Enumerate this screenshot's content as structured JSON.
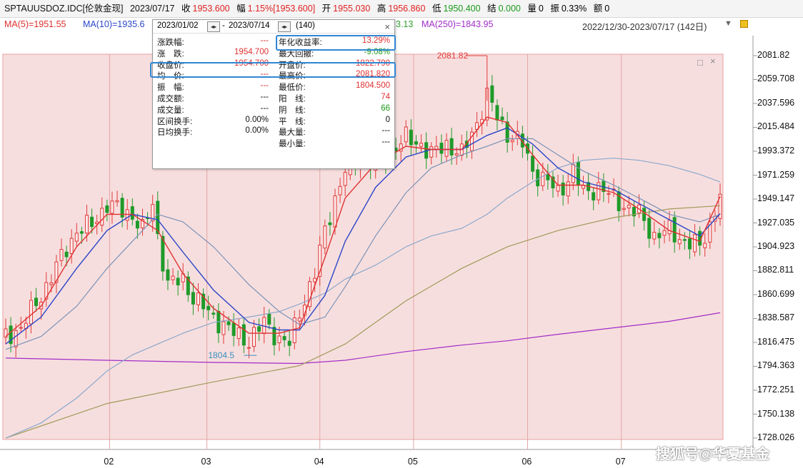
{
  "topbar": {
    "symbol": "SPTAUUSDOZ.IDC[伦敦金现]",
    "date": "2023/07/17",
    "close_label": "收",
    "close_value": "1953.600",
    "change_label": "幅",
    "change_value": "1.15%[1953.600]",
    "open_label": "开",
    "open_value": "1955.030",
    "high_label": "高",
    "high_value": "1956.860",
    "low_label": "低",
    "low_value": "1950.400",
    "settle_label": "结",
    "settle_value": "0.000",
    "volume_label": "量",
    "volume_value": "0",
    "amplitude_label": "振",
    "amplitude_value": "0.33%",
    "amount_label": "额",
    "amount_value": "0"
  },
  "ma": {
    "ma5": "MA(5)=1951.55",
    "ma10": "MA(10)=1935.6",
    "ma60_tail": "3.13",
    "ma250": "MA(250)=1843.95",
    "range": "2022/12/30-2023/07/17 (142日)",
    "colors": {
      "ma5": "#e03030",
      "ma10": "#2a45c8",
      "ma20": "#7a93b8",
      "ma60": "#8aa8cc",
      "ma120": "#a09a5a",
      "ma250": "#a22cc8"
    }
  },
  "panel": {
    "start_date": "2023/01/02",
    "end_date": "2023/07/14",
    "count": "(140)",
    "close_symbol": "×",
    "left": [
      {
        "label": "涨跌幅:",
        "value": "---"
      },
      {
        "label": "涨　跌:",
        "value": "1954.700"
      },
      {
        "label": "收盘价:",
        "value": "1954.700"
      },
      {
        "label": "均　价:",
        "value": "---"
      },
      {
        "label": "振　幅:",
        "value": "---"
      },
      {
        "label": "成交额:",
        "value": "---"
      },
      {
        "label": "成交量:",
        "value": "---"
      },
      {
        "label": "区间换手:",
        "value": "0.00%"
      },
      {
        "label": "日均换手:",
        "value": "0.00%"
      }
    ],
    "right": [
      {
        "label": "年化收益率:",
        "value": "13.29%"
      },
      {
        "label": "最大回撤:",
        "value": "-9.08%"
      },
      {
        "label": "开盘价:",
        "value": "1822.790"
      },
      {
        "label": "最高价:",
        "value": "2081.820"
      },
      {
        "label": "最低价:",
        "value": "1804.500"
      },
      {
        "label": "阳　线:",
        "value": "74"
      },
      {
        "label": "阴　线:",
        "value": "66"
      },
      {
        "label": "平　线:",
        "value": "0"
      },
      {
        "label": "最大量:",
        "value": "---"
      },
      {
        "label": "最小量:",
        "value": "---"
      }
    ]
  },
  "annotations": {
    "high": "2081.82",
    "low": "1804.5"
  },
  "watermark": "搜狐号@华夏基金",
  "chart_data": {
    "type": "candlestick",
    "y_ticks": [
      "2081.82",
      "2059.708",
      "2037.596",
      "2015.484",
      "1993.372",
      "1971.259",
      "1949.147",
      "1927.035",
      "1904.923",
      "1882.811",
      "1860.699",
      "1838.587",
      "1816.475",
      "1794.363",
      "1772.251",
      "1750.138",
      "1728.026"
    ],
    "x_ticks": [
      "02",
      "03",
      "04",
      "05",
      "06",
      "07"
    ],
    "ylim": [
      1728.026,
      2081.82
    ],
    "close_path": [
      [
        1,
        1822
      ],
      [
        4,
        1830
      ],
      [
        8,
        1860
      ],
      [
        12,
        1895
      ],
      [
        15,
        1920
      ],
      [
        18,
        1925
      ],
      [
        21,
        1945
      ],
      [
        24,
        1938
      ],
      [
        26,
        1935
      ],
      [
        28,
        1920
      ],
      [
        30,
        1945
      ],
      [
        31,
        1915
      ],
      [
        33,
        1870
      ],
      [
        36,
        1875
      ],
      [
        38,
        1858
      ],
      [
        42,
        1840
      ],
      [
        46,
        1825
      ],
      [
        49,
        1818
      ],
      [
        52,
        1835
      ],
      [
        55,
        1820
      ],
      [
        57,
        1815
      ],
      [
        59,
        1845
      ],
      [
        62,
        1880
      ],
      [
        64,
        1920
      ],
      [
        66,
        1950
      ],
      [
        68,
        1975
      ],
      [
        71,
        1990
      ],
      [
        74,
        1980
      ],
      [
        77,
        1995
      ],
      [
        80,
        2005
      ],
      [
        83,
        2000
      ],
      [
        85,
        1990
      ],
      [
        88,
        2000
      ],
      [
        91,
        1990
      ],
      [
        94,
        2020
      ],
      [
        96,
        2045
      ],
      [
        98,
        2025
      ],
      [
        100,
        2010
      ],
      [
        103,
        2000
      ],
      [
        105,
        1975
      ],
      [
        108,
        1965
      ],
      [
        110,
        1955
      ],
      [
        113,
        1975
      ],
      [
        115,
        1955
      ],
      [
        118,
        1960
      ],
      [
        121,
        1950
      ],
      [
        124,
        1940
      ],
      [
        126,
        1935
      ],
      [
        129,
        1915
      ],
      [
        132,
        1920
      ],
      [
        135,
        1910
      ],
      [
        138,
        1905
      ],
      [
        140,
        1925
      ],
      [
        142,
        1953.6
      ]
    ],
    "ma5": [
      [
        1,
        1822
      ],
      [
        8,
        1850
      ],
      [
        15,
        1905
      ],
      [
        21,
        1935
      ],
      [
        26,
        1935
      ],
      [
        31,
        1920
      ],
      [
        36,
        1880
      ],
      [
        42,
        1848
      ],
      [
        49,
        1825
      ],
      [
        55,
        1825
      ],
      [
        59,
        1830
      ],
      [
        64,
        1895
      ],
      [
        68,
        1950
      ],
      [
        74,
        1982
      ],
      [
        80,
        1998
      ],
      [
        85,
        1995
      ],
      [
        91,
        1995
      ],
      [
        96,
        2025
      ],
      [
        100,
        2020
      ],
      [
        105,
        1990
      ],
      [
        110,
        1962
      ],
      [
        115,
        1962
      ],
      [
        121,
        1955
      ],
      [
        126,
        1940
      ],
      [
        132,
        1920
      ],
      [
        138,
        1910
      ],
      [
        142,
        1951.55
      ]
    ],
    "ma10": [
      [
        1,
        1815
      ],
      [
        8,
        1840
      ],
      [
        15,
        1885
      ],
      [
        21,
        1920
      ],
      [
        26,
        1935
      ],
      [
        31,
        1930
      ],
      [
        36,
        1900
      ],
      [
        42,
        1865
      ],
      [
        49,
        1835
      ],
      [
        55,
        1828
      ],
      [
        59,
        1828
      ],
      [
        64,
        1860
      ],
      [
        68,
        1910
      ],
      [
        74,
        1960
      ],
      [
        80,
        1988
      ],
      [
        85,
        1995
      ],
      [
        91,
        1995
      ],
      [
        96,
        2008
      ],
      [
        100,
        2015
      ],
      [
        105,
        2000
      ],
      [
        110,
        1978
      ],
      [
        115,
        1965
      ],
      [
        121,
        1958
      ],
      [
        126,
        1945
      ],
      [
        132,
        1930
      ],
      [
        138,
        1915
      ],
      [
        142,
        1935.6
      ]
    ],
    "ma20": [
      [
        1,
        1810
      ],
      [
        8,
        1822
      ],
      [
        15,
        1850
      ],
      [
        21,
        1885
      ],
      [
        26,
        1910
      ],
      [
        31,
        1935
      ],
      [
        36,
        1928
      ],
      [
        42,
        1905
      ],
      [
        49,
        1870
      ],
      [
        55,
        1845
      ],
      [
        59,
        1833
      ],
      [
        64,
        1840
      ],
      [
        68,
        1868
      ],
      [
        74,
        1915
      ],
      [
        80,
        1955
      ],
      [
        85,
        1978
      ],
      [
        91,
        1990
      ],
      [
        96,
        1998
      ],
      [
        100,
        2005
      ],
      [
        105,
        2005
      ],
      [
        110,
        1990
      ],
      [
        115,
        1975
      ],
      [
        121,
        1962
      ],
      [
        126,
        1950
      ],
      [
        132,
        1935
      ],
      [
        138,
        1928
      ],
      [
        142,
        1935
      ]
    ],
    "ma60": [
      [
        1,
        1728
      ],
      [
        8,
        1742
      ],
      [
        15,
        1765
      ],
      [
        21,
        1790
      ],
      [
        26,
        1805
      ],
      [
        31,
        1815
      ],
      [
        36,
        1825
      ],
      [
        42,
        1835
      ],
      [
        49,
        1840
      ],
      [
        55,
        1845
      ],
      [
        59,
        1852
      ],
      [
        64,
        1862
      ],
      [
        68,
        1875
      ],
      [
        74,
        1888
      ],
      [
        80,
        1905
      ],
      [
        85,
        1915
      ],
      [
        91,
        1922
      ],
      [
        96,
        1935
      ],
      [
        100,
        1950
      ],
      [
        105,
        1965
      ],
      [
        110,
        1978
      ],
      [
        115,
        1985
      ],
      [
        121,
        1987
      ],
      [
        126,
        1985
      ],
      [
        132,
        1980
      ],
      [
        138,
        1972
      ],
      [
        142,
        1965
      ]
    ],
    "ma120": [
      [
        1,
        1728
      ],
      [
        21,
        1760
      ],
      [
        42,
        1780
      ],
      [
        59,
        1795
      ],
      [
        68,
        1815
      ],
      [
        80,
        1855
      ],
      [
        91,
        1885
      ],
      [
        100,
        1905
      ],
      [
        110,
        1920
      ],
      [
        121,
        1932
      ],
      [
        132,
        1940
      ],
      [
        142,
        1943
      ]
    ],
    "ma250": [
      [
        1,
        1802
      ],
      [
        21,
        1800
      ],
      [
        42,
        1798
      ],
      [
        59,
        1797
      ],
      [
        68,
        1800
      ],
      [
        80,
        1808
      ],
      [
        91,
        1814
      ],
      [
        100,
        1818
      ],
      [
        110,
        1824
      ],
      [
        121,
        1830
      ],
      [
        132,
        1836
      ],
      [
        142,
        1843.95
      ]
    ]
  }
}
